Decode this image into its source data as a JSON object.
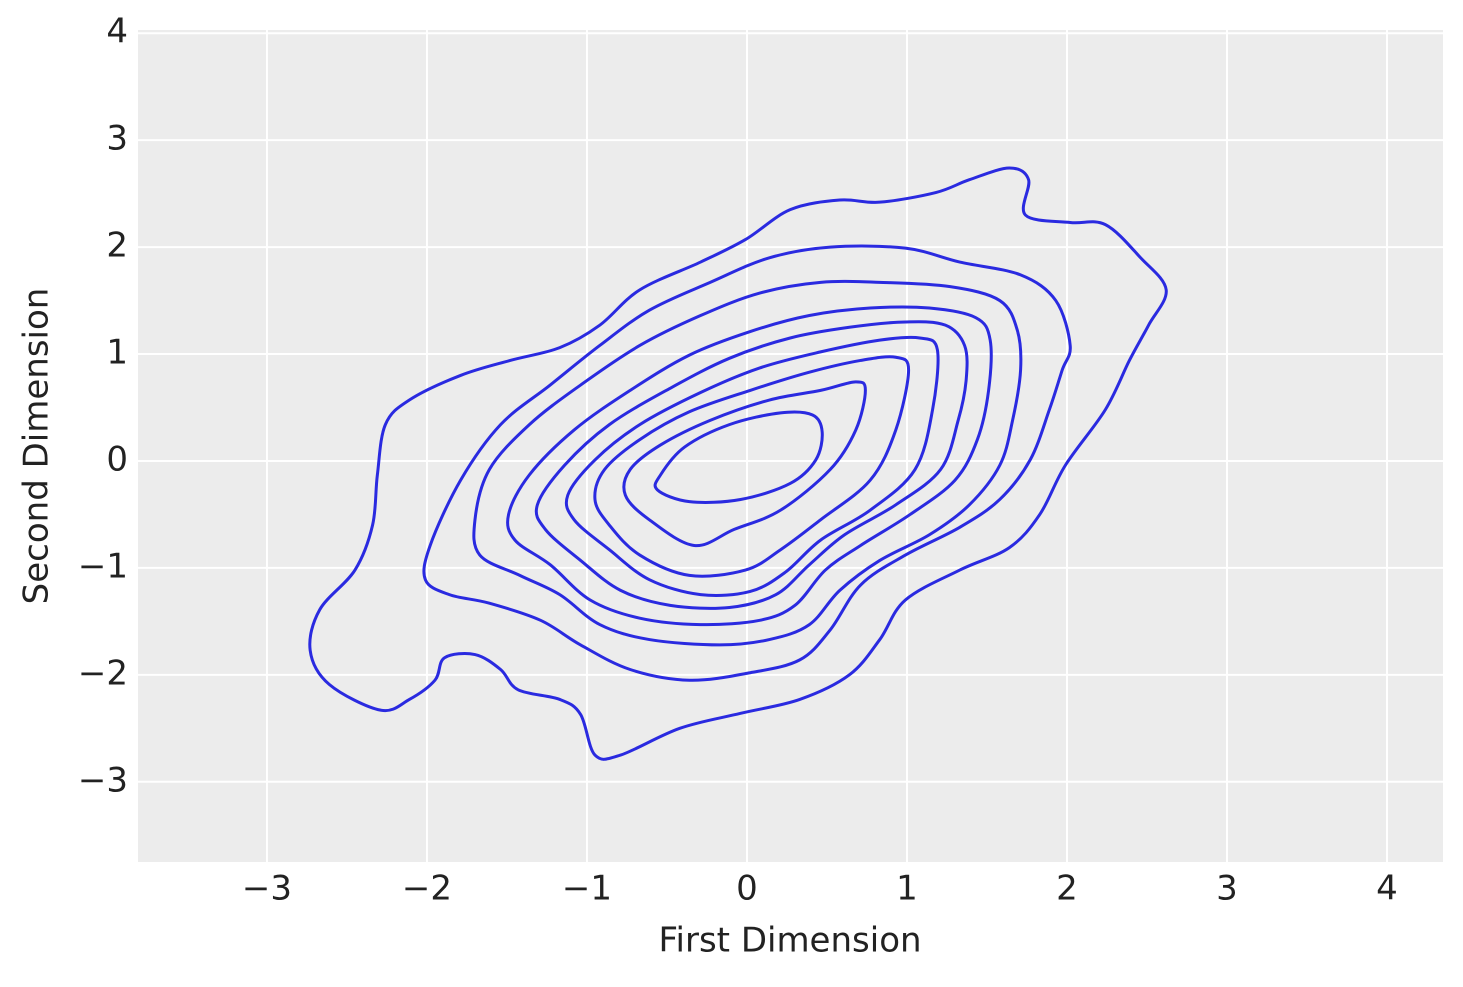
{
  "chart_data": {
    "type": "contour",
    "xlabel": "First Dimension",
    "ylabel": "Second Dimension",
    "color": "#2a2ae0",
    "grid": true,
    "xlim": [
      -3.806,
      4.35
    ],
    "ylim": [
      -3.75,
      4.03
    ],
    "xticks": [
      {
        "value": -3,
        "label": "−3"
      },
      {
        "value": -2,
        "label": "−2"
      },
      {
        "value": -1,
        "label": "−1"
      },
      0,
      1,
      2,
      3,
      4
    ],
    "yticks": [
      {
        "value": -3,
        "label": "−3"
      },
      {
        "value": -2,
        "label": "−2"
      },
      {
        "value": -1,
        "label": "−1"
      },
      0,
      1,
      2,
      3,
      4
    ],
    "series": [
      {
        "x": [
          0.47,
          0.41,
          0.21,
          -0.11,
          -0.39,
          -0.54,
          -0.56,
          -0.36,
          -0.04,
          0.27,
          0.43
        ],
        "y": [
          0.27,
          0.43,
          0.45,
          0.34,
          0.13,
          -0.13,
          -0.27,
          -0.38,
          -0.36,
          -0.21,
          0.01
        ]
      },
      {
        "x": [
          0.74,
          0.68,
          0.46,
          0.14,
          -0.23,
          -0.54,
          -0.73,
          -0.76,
          -0.61,
          -0.33,
          -0.08,
          0.21,
          0.52,
          0.68
        ],
        "y": [
          0.66,
          0.74,
          0.66,
          0.57,
          0.38,
          0.15,
          -0.08,
          -0.32,
          -0.55,
          -0.79,
          -0.64,
          -0.46,
          -0.08,
          0.29
        ]
      },
      {
        "x": [
          1.01,
          0.93,
          0.71,
          0.39,
          0.02,
          -0.36,
          -0.67,
          -0.89,
          -0.95,
          -0.86,
          -0.67,
          -0.36,
          -0.01,
          0.21,
          0.46,
          0.77,
          0.93
        ],
        "y": [
          0.85,
          0.97,
          0.94,
          0.83,
          0.66,
          0.46,
          0.2,
          -0.08,
          -0.36,
          -0.6,
          -0.88,
          -1.07,
          -1.02,
          -0.83,
          -0.55,
          -0.18,
          0.29
        ]
      },
      {
        "x": [
          1.19,
          1.08,
          0.83,
          0.46,
          0.08,
          -0.29,
          -0.67,
          -0.95,
          -1.12,
          -1.08,
          -0.86,
          -0.61,
          -0.29,
          0.02,
          0.24,
          0.46,
          0.77,
          1.05,
          1.16
        ],
        "y": [
          1.04,
          1.15,
          1.13,
          1.02,
          0.87,
          0.64,
          0.34,
          0.01,
          -0.32,
          -0.55,
          -0.83,
          -1.11,
          -1.25,
          -1.22,
          -1.04,
          -0.74,
          -0.46,
          -0.08,
          0.48
        ]
      },
      {
        "x": [
          1.36,
          1.24,
          0.99,
          0.64,
          0.27,
          -0.11,
          -0.48,
          -0.86,
          -1.14,
          -1.31,
          -1.26,
          -1.04,
          -0.79,
          -0.48,
          -0.11,
          0.18,
          0.39,
          0.61,
          0.93,
          1.21,
          1.32,
          1.37
        ],
        "y": [
          1.08,
          1.27,
          1.3,
          1.25,
          1.15,
          0.96,
          0.68,
          0.34,
          -0.04,
          -0.41,
          -0.64,
          -0.93,
          -1.21,
          -1.35,
          -1.37,
          -1.25,
          -0.97,
          -0.69,
          -0.41,
          -0.08,
          0.38,
          0.76
        ]
      },
      {
        "x": [
          1.52,
          1.43,
          1.14,
          0.77,
          0.39,
          0.02,
          -0.36,
          -0.73,
          -1.08,
          -1.36,
          -1.49,
          -1.45,
          -1.23,
          -0.98,
          -0.67,
          -0.29,
          0.08,
          0.3,
          0.49,
          0.71,
          1.02,
          1.3,
          1.44,
          1.51
        ],
        "y": [
          1.13,
          1.34,
          1.43,
          1.43,
          1.36,
          1.21,
          0.99,
          0.66,
          0.29,
          -0.13,
          -0.5,
          -0.74,
          -0.97,
          -1.3,
          -1.47,
          -1.53,
          -1.49,
          -1.35,
          -1.02,
          -0.79,
          -0.5,
          -0.18,
          0.2,
          0.66
        ]
      },
      {
        "x": [
          1.69,
          1.58,
          1.27,
          0.83,
          0.46,
          0.08,
          -0.29,
          -0.67,
          -1.04,
          -1.36,
          -1.61,
          -1.7,
          -1.67,
          -1.42,
          -1.17,
          -0.92,
          -0.61,
          -0.17,
          0.14,
          0.39,
          0.58,
          0.83,
          1.14,
          1.39,
          1.58,
          1.66,
          1.71
        ],
        "y": [
          1.22,
          1.5,
          1.63,
          1.67,
          1.67,
          1.57,
          1.36,
          1.08,
          0.71,
          0.34,
          -0.08,
          -0.55,
          -0.88,
          -1.07,
          -1.25,
          -1.53,
          -1.67,
          -1.72,
          -1.67,
          -1.53,
          -1.21,
          -0.93,
          -0.69,
          -0.41,
          -0.04,
          0.38,
          0.85
        ]
      },
      {
        "x": [
          2.02,
          1.93,
          1.71,
          1.33,
          0.99,
          0.52,
          0.14,
          -0.23,
          -0.61,
          -0.92,
          -1.23,
          -1.54,
          -1.79,
          -1.98,
          -2.01,
          -1.86,
          -1.61,
          -1.29,
          -1.04,
          -0.73,
          -0.36,
          0.02,
          0.33,
          0.52,
          0.71,
          0.99,
          1.33,
          1.58,
          1.77,
          1.89,
          1.97
        ],
        "y": [
          1.08,
          1.5,
          1.74,
          1.86,
          1.99,
          2.0,
          1.9,
          1.67,
          1.41,
          1.08,
          0.71,
          0.34,
          -0.18,
          -0.79,
          -1.11,
          -1.25,
          -1.33,
          -1.49,
          -1.72,
          -1.95,
          -2.05,
          -1.98,
          -1.86,
          -1.58,
          -1.16,
          -0.88,
          -0.62,
          -0.36,
          0.01,
          0.48,
          0.85
        ]
      },
      {
        "x": [
          2.62,
          2.46,
          2.24,
          2.02,
          1.74,
          1.76,
          1.64,
          1.39,
          1.18,
          0.83,
          0.58,
          0.27,
          -0.01,
          -0.29,
          -0.67,
          -0.92,
          -1.17,
          -1.48,
          -1.79,
          -2.11,
          -2.26,
          -2.31,
          -2.34,
          -2.45,
          -2.67,
          -2.73,
          -2.61,
          -2.29,
          -2.11,
          -1.95,
          -1.89,
          -1.7,
          -1.54,
          -1.43,
          -1.17,
          -1.04,
          -0.95,
          -0.79,
          -0.42,
          -0.04,
          0.33,
          0.64,
          0.83,
          0.99,
          1.33,
          1.64,
          1.83,
          1.99,
          2.24,
          2.39,
          2.51
        ],
        "y": [
          1.6,
          1.9,
          2.21,
          2.23,
          2.3,
          2.63,
          2.74,
          2.63,
          2.51,
          2.42,
          2.44,
          2.35,
          2.07,
          1.86,
          1.6,
          1.27,
          1.06,
          0.94,
          0.8,
          0.57,
          0.34,
          -0.13,
          -0.6,
          -1.02,
          -1.39,
          -1.77,
          -2.09,
          -2.33,
          -2.23,
          -2.05,
          -1.84,
          -1.81,
          -1.95,
          -2.14,
          -2.23,
          -2.37,
          -2.75,
          -2.75,
          -2.5,
          -2.36,
          -2.23,
          -2.0,
          -1.67,
          -1.3,
          -1.02,
          -0.81,
          -0.5,
          -0.04,
          0.48,
          0.94,
          1.27
        ]
      }
    ]
  }
}
